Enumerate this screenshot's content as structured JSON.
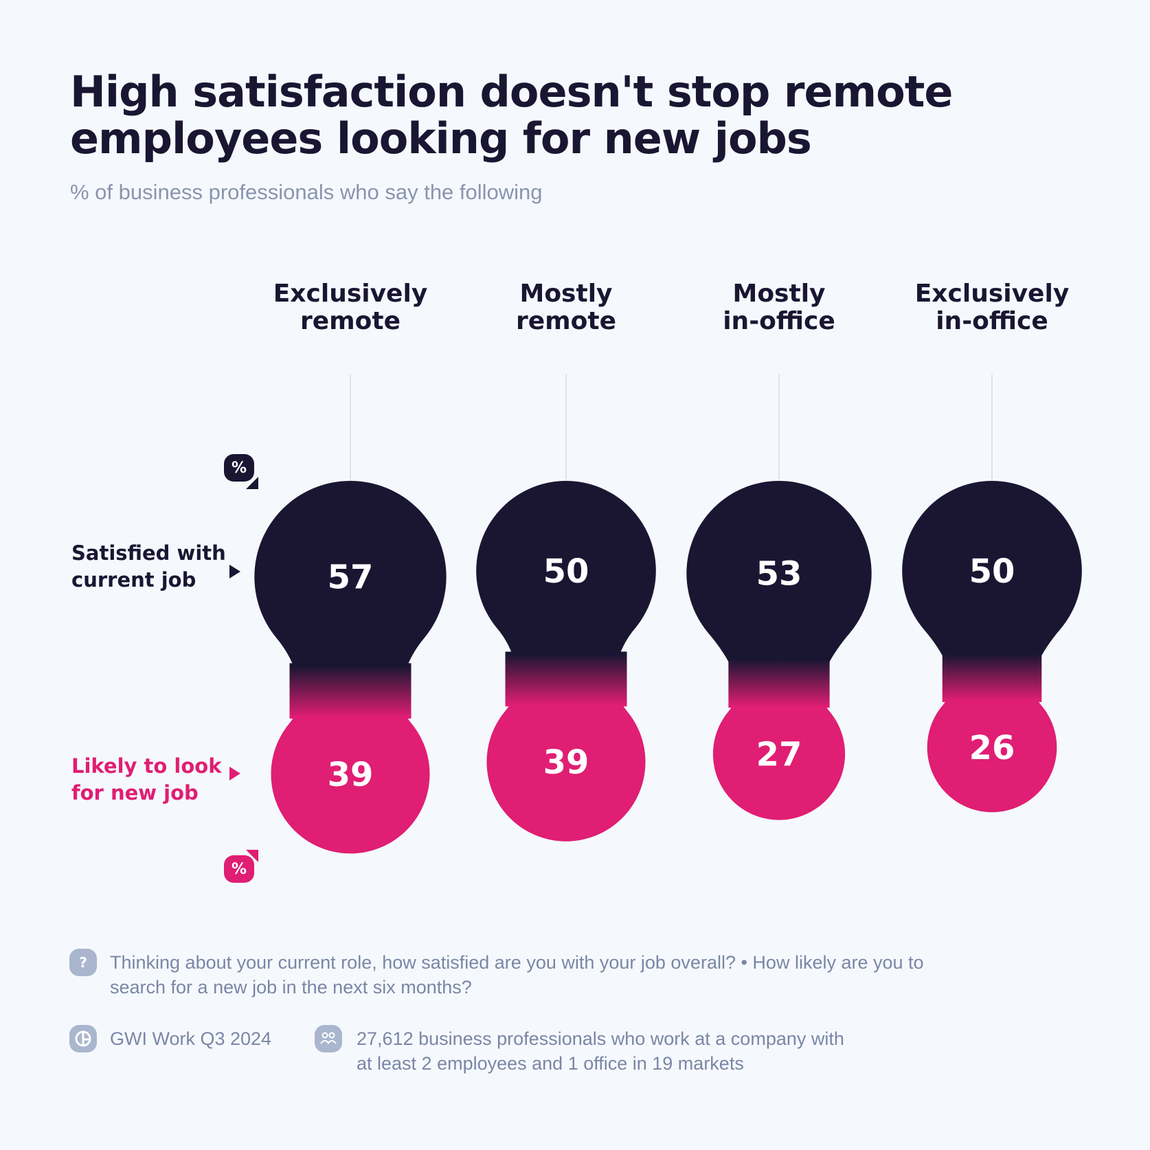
{
  "title": "High satisfaction doesn't stop remote employees looking for new jobs",
  "subtitle": "% of business professionals who say the following",
  "colors": {
    "satisfied": "#1a1632",
    "likely": "#e01e73",
    "background": "#f5f9fd",
    "muted": "#7a86a6"
  },
  "chart_data": {
    "type": "bubble-pairs",
    "categories": [
      "Exclusively remote",
      "Mostly remote",
      "Mostly in-office",
      "Exclusively in-office"
    ],
    "category_lines": [
      [
        "Exclusively",
        "remote"
      ],
      [
        "Mostly",
        "remote"
      ],
      [
        "Mostly",
        "in-office"
      ],
      [
        "Exclusively",
        "in-office"
      ]
    ],
    "unit_badge": "%",
    "series": [
      {
        "name": "Satisfied with current job",
        "label_lines": [
          "Satisfied with",
          "current job"
        ],
        "values": [
          57,
          50,
          53,
          50
        ]
      },
      {
        "name": "Likely to look for new job",
        "label_lines": [
          "Likely to look",
          "for new job"
        ],
        "values": [
          39,
          39,
          27,
          26
        ]
      }
    ]
  },
  "footer": {
    "question_icon": "question-icon",
    "question_lines": [
      "Thinking about your current role, how satisfied are you with your job overall? • How likely are you to",
      "search for a new job in the next six months?"
    ],
    "source_icon": "gwi-logo-icon",
    "source": "GWI Work Q3 2024",
    "sample_icon": "people-icon",
    "sample_lines": [
      "27,612 business professionals who work at a company with",
      "at least 2 employees and 1 office in 19 markets"
    ]
  }
}
